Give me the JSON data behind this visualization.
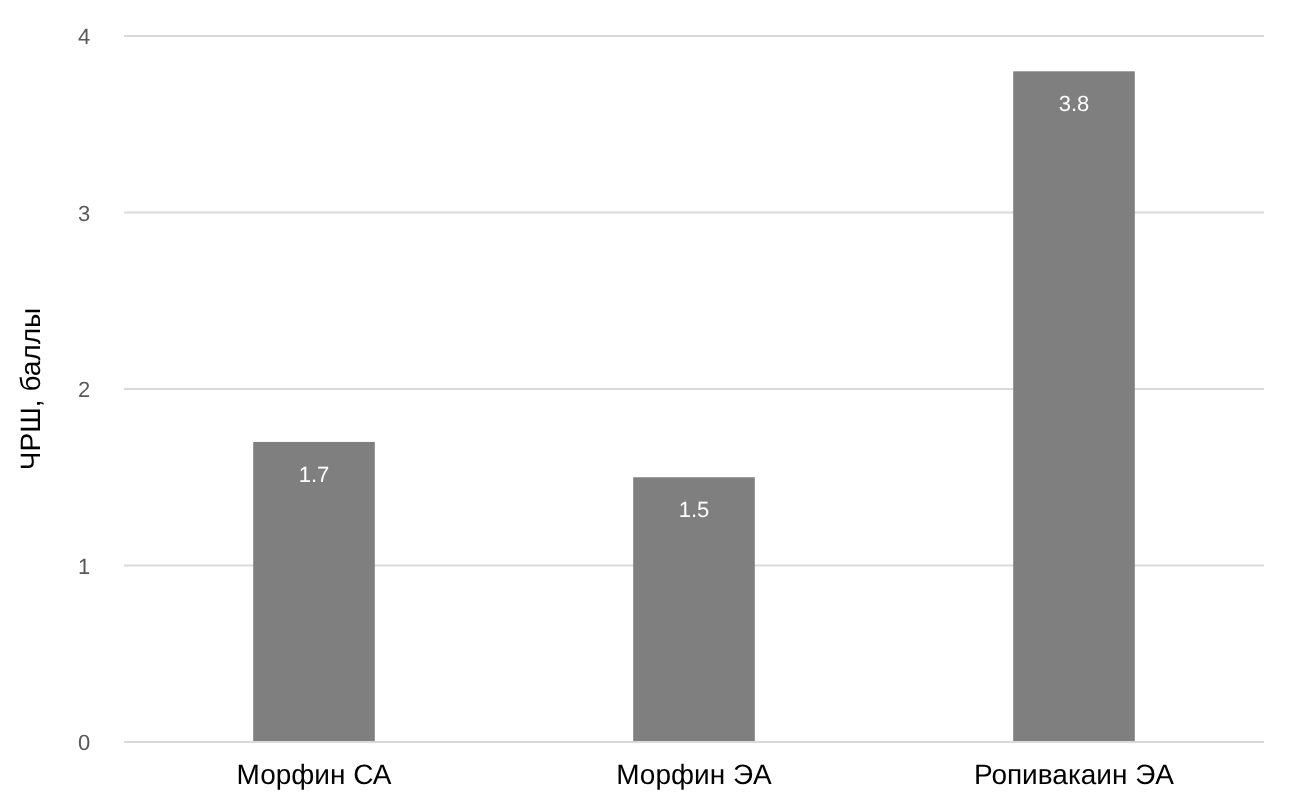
{
  "chart_data": {
    "type": "bar",
    "ylabel": "ЧРШ, баллы",
    "categories": [
      "Морфин СА",
      "Морфин ЭА",
      "Ропивакаин ЭА"
    ],
    "values": [
      1.7,
      1.5,
      3.8
    ],
    "color": "#7f7f7f",
    "ylim": [
      0,
      4
    ],
    "yticks": [
      0,
      1,
      2,
      3,
      4
    ],
    "grid": "y",
    "data_labels": true
  }
}
